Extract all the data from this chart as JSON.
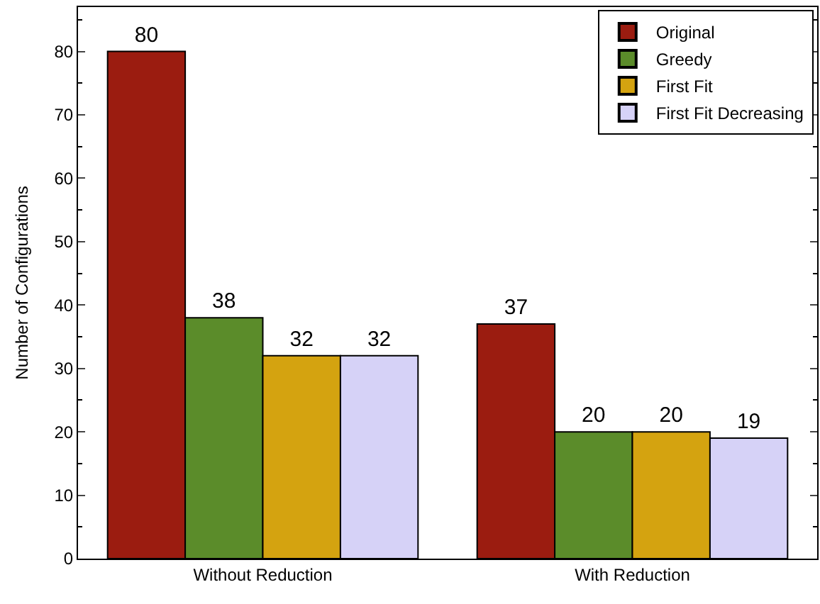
{
  "chart_data": {
    "type": "bar",
    "ylabel": "Number of Configurations",
    "categories": [
      "Without Reduction",
      "With Reduction"
    ],
    "series": [
      {
        "name": "Original",
        "color": "#9b1c10",
        "values": [
          80,
          37
        ]
      },
      {
        "name": "Greedy",
        "color": "#5b8c2a",
        "values": [
          38,
          20
        ]
      },
      {
        "name": "First Fit",
        "color": "#d4a310",
        "values": [
          32,
          20
        ]
      },
      {
        "name": "First Fit Decreasing",
        "color": "#d6d2f7",
        "values": [
          32,
          19
        ]
      }
    ],
    "ylim": [
      0,
      87
    ],
    "yticks": [
      0,
      10,
      20,
      30,
      40,
      50,
      60,
      70,
      80
    ],
    "data_labels": true,
    "legend": "top right"
  }
}
